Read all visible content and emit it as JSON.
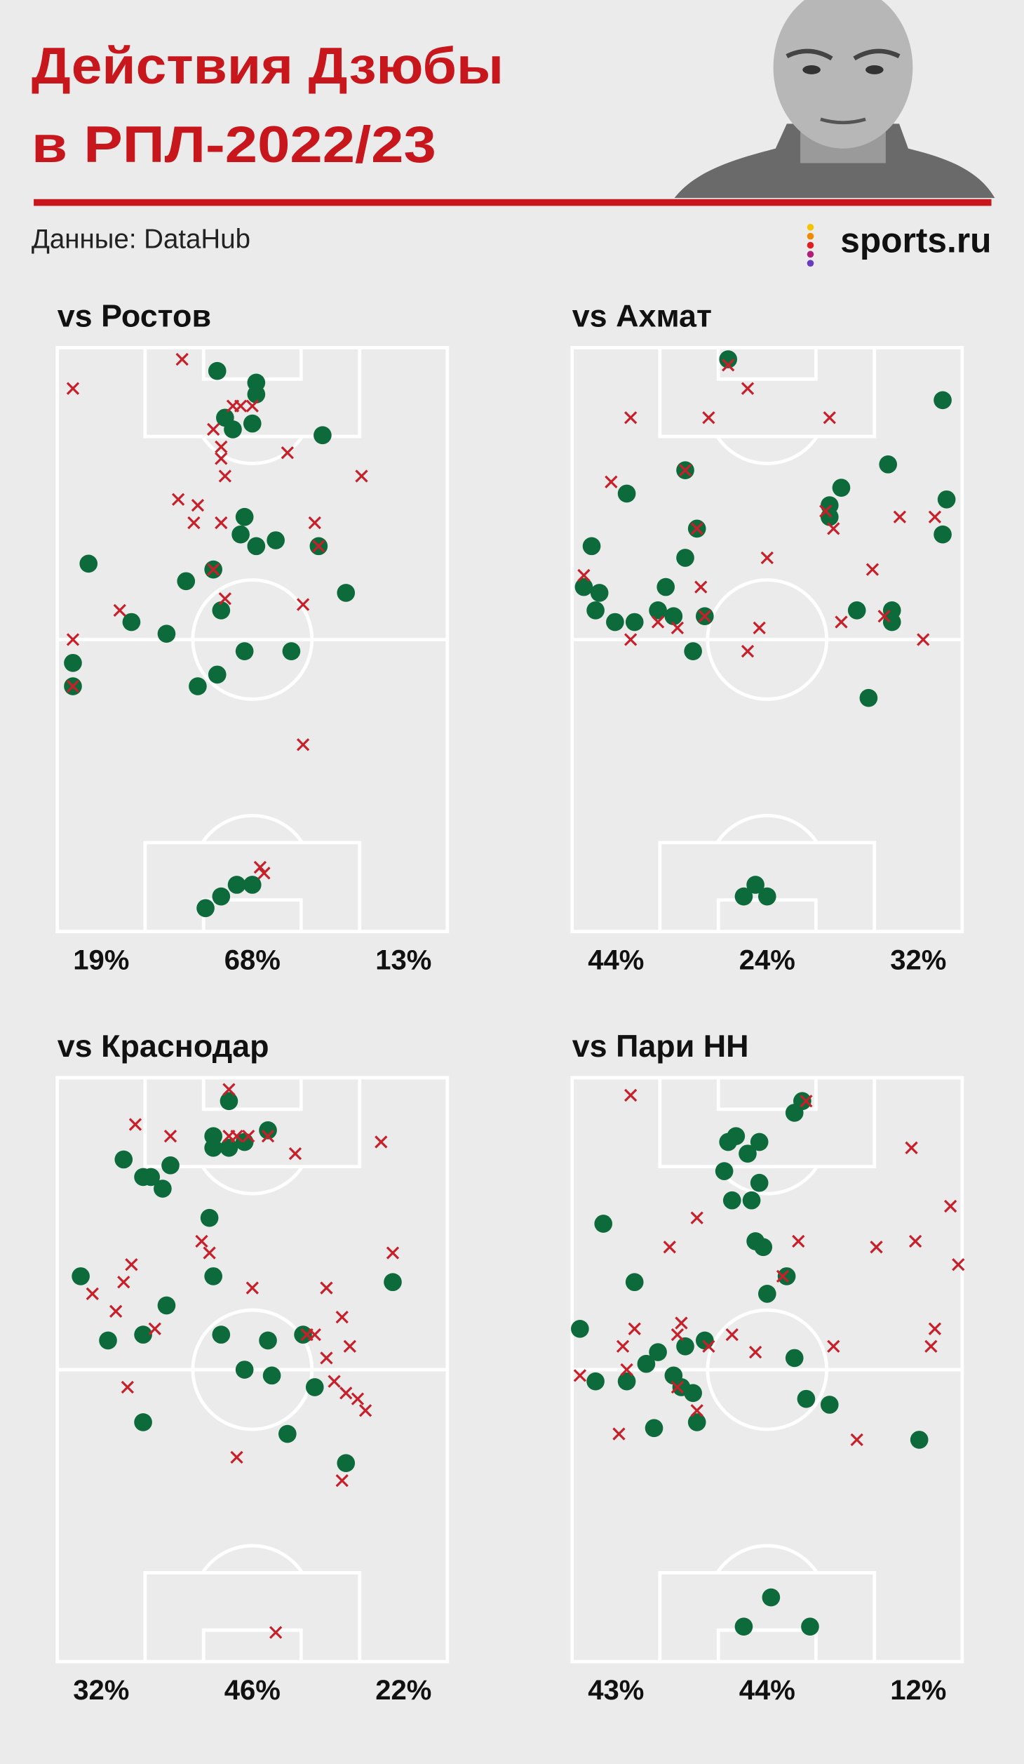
{
  "header": {
    "title_lines": [
      "Действия Дзюбы",
      "в РПЛ-2022/23"
    ],
    "source": "Данные: DataHub",
    "logo": "sports.ru"
  },
  "chart_data": [
    {
      "type": "scatter",
      "title": "vs Ростов",
      "xlim": [
        0,
        100
      ],
      "ylim": [
        0,
        100
      ],
      "series": [
        {
          "marker": "circle",
          "color": "#0d6a3a",
          "x": [
            41,
            51,
            51,
            43,
            45,
            50,
            68,
            48,
            47,
            51,
            56,
            67,
            40,
            33,
            42,
            74,
            8,
            19,
            28,
            48,
            60,
            41,
            36,
            4,
            4,
            38,
            42,
            46,
            50
          ],
          "y": [
            4,
            6,
            8,
            12,
            14,
            13,
            15,
            29,
            32,
            34,
            33,
            34,
            38,
            40,
            45,
            42,
            37,
            47,
            49,
            52,
            52,
            56,
            58,
            54,
            58,
            96,
            94,
            92,
            92
          ]
        },
        {
          "marker": "cross",
          "color": "#c8202a",
          "x": [
            4,
            32,
            45,
            47,
            50,
            40,
            42,
            42,
            43,
            59,
            78,
            31,
            36,
            35,
            42,
            66,
            67,
            40,
            43,
            63,
            16,
            4,
            4,
            63,
            52,
            53
          ],
          "y": [
            7,
            2,
            10,
            10,
            10,
            14,
            17,
            19,
            22,
            18,
            22,
            26,
            27,
            30,
            30,
            30,
            34,
            38,
            43,
            44,
            45,
            50,
            58,
            68,
            89,
            90
          ]
        }
      ],
      "zone_shares": {
        "values": [
          19,
          68,
          13
        ],
        "value_labels": [
          "19%",
          "68%",
          "13%"
        ]
      }
    },
    {
      "type": "scatter",
      "title": "vs Ахмат",
      "xlim": [
        0,
        100
      ],
      "ylim": [
        0,
        100
      ],
      "series": [
        {
          "marker": "circle",
          "color": "#0d6a3a",
          "x": [
            40,
            95,
            81,
            69,
            29,
            14,
            66,
            66,
            96,
            95,
            32,
            29,
            5,
            3,
            7,
            6,
            24,
            22,
            26,
            11,
            16,
            34,
            31,
            73,
            82,
            82,
            76,
            44,
            47,
            50
          ],
          "y": [
            2,
            9,
            20,
            24,
            21,
            25,
            27,
            29,
            26,
            32,
            31,
            36,
            34,
            41,
            42,
            45,
            41,
            45,
            46,
            47,
            47,
            46,
            52,
            45,
            45,
            47,
            60,
            94,
            92,
            94
          ]
        },
        {
          "marker": "cross",
          "color": "#c8202a",
          "x": [
            40,
            45,
            15,
            35,
            66,
            10,
            29,
            65,
            67,
            84,
            93,
            32,
            50,
            77,
            3,
            33,
            34,
            22,
            27,
            15,
            48,
            45,
            69,
            80,
            90
          ],
          "y": [
            3,
            7,
            12,
            12,
            12,
            23,
            21,
            28,
            31,
            29,
            29,
            31,
            36,
            38,
            39,
            41,
            46,
            47,
            48,
            50,
            48,
            52,
            47,
            46,
            50
          ]
        }
      ],
      "zone_shares": {
        "values": [
          44,
          24,
          32
        ],
        "value_labels": [
          "44%",
          "24%",
          "32%"
        ]
      }
    },
    {
      "type": "scatter",
      "title": "vs Краснодар",
      "xlim": [
        0,
        100
      ],
      "ylim": [
        0,
        100
      ],
      "series": [
        {
          "marker": "circle",
          "color": "#0d6a3a",
          "x": [
            44,
            40,
            40,
            44,
            48,
            54,
            17,
            22,
            24,
            27,
            29,
            39,
            40,
            6,
            28,
            13,
            22,
            42,
            54,
            63,
            48,
            55,
            66,
            22,
            59,
            86,
            74
          ],
          "y": [
            4,
            10,
            12,
            12,
            11,
            9,
            14,
            17,
            17,
            19,
            15,
            24,
            34,
            34,
            39,
            45,
            44,
            44,
            45,
            44,
            50,
            51,
            53,
            59,
            61,
            35,
            66
          ]
        },
        {
          "marker": "cross",
          "color": "#c8202a",
          "x": [
            44,
            20,
            29,
            44,
            46,
            49,
            54,
            61,
            83,
            37,
            39,
            19,
            17,
            9,
            50,
            69,
            86,
            15,
            25,
            73,
            64,
            66,
            75,
            69,
            71,
            74,
            77,
            79,
            18,
            46,
            73,
            56
          ],
          "y": [
            2,
            8,
            10,
            10,
            10,
            10,
            10,
            13,
            11,
            28,
            30,
            32,
            35,
            37,
            36,
            36,
            30,
            40,
            43,
            41,
            44,
            44,
            46,
            48,
            52,
            54,
            55,
            57,
            53,
            65,
            69,
            95
          ]
        }
      ],
      "zone_shares": {
        "values": [
          32,
          46,
          22
        ],
        "value_labels": [
          "32%",
          "46%",
          "22%"
        ]
      }
    },
    {
      "type": "scatter",
      "title": "vs Пари НН",
      "xlim": [
        0,
        100
      ],
      "ylim": [
        0,
        100
      ],
      "series": [
        {
          "marker": "circle",
          "color": "#0d6a3a",
          "x": [
            59,
            57,
            42,
            40,
            48,
            45,
            39,
            48,
            46,
            41,
            8,
            47,
            49,
            55,
            50,
            16,
            2,
            29,
            34,
            22,
            19,
            26,
            28,
            31,
            6,
            14,
            32,
            21,
            57,
            60,
            66,
            89,
            51,
            44,
            61
          ],
          "y": [
            4,
            6,
            10,
            11,
            11,
            13,
            16,
            18,
            21,
            21,
            25,
            28,
            29,
            34,
            37,
            35,
            43,
            46,
            45,
            47,
            49,
            51,
            53,
            54,
            52,
            52,
            59,
            60,
            48,
            55,
            56,
            62,
            89,
            94,
            94
          ]
        },
        {
          "marker": "cross",
          "color": "#c8202a",
          "x": [
            15,
            60,
            87,
            25,
            32,
            58,
            78,
            88,
            97,
            99,
            54,
            16,
            13,
            28,
            27,
            35,
            41,
            47,
            67,
            93,
            92,
            2,
            14,
            27,
            32,
            12,
            73
          ],
          "y": [
            3,
            4,
            12,
            29,
            24,
            28,
            29,
            28,
            22,
            32,
            34,
            43,
            46,
            42,
            44,
            46,
            44,
            47,
            46,
            43,
            46,
            51,
            50,
            53,
            57,
            61,
            62
          ]
        }
      ],
      "zone_shares": {
        "values": [
          43,
          44,
          12
        ],
        "value_labels": [
          "43%",
          "44%",
          "12%"
        ]
      }
    }
  ]
}
